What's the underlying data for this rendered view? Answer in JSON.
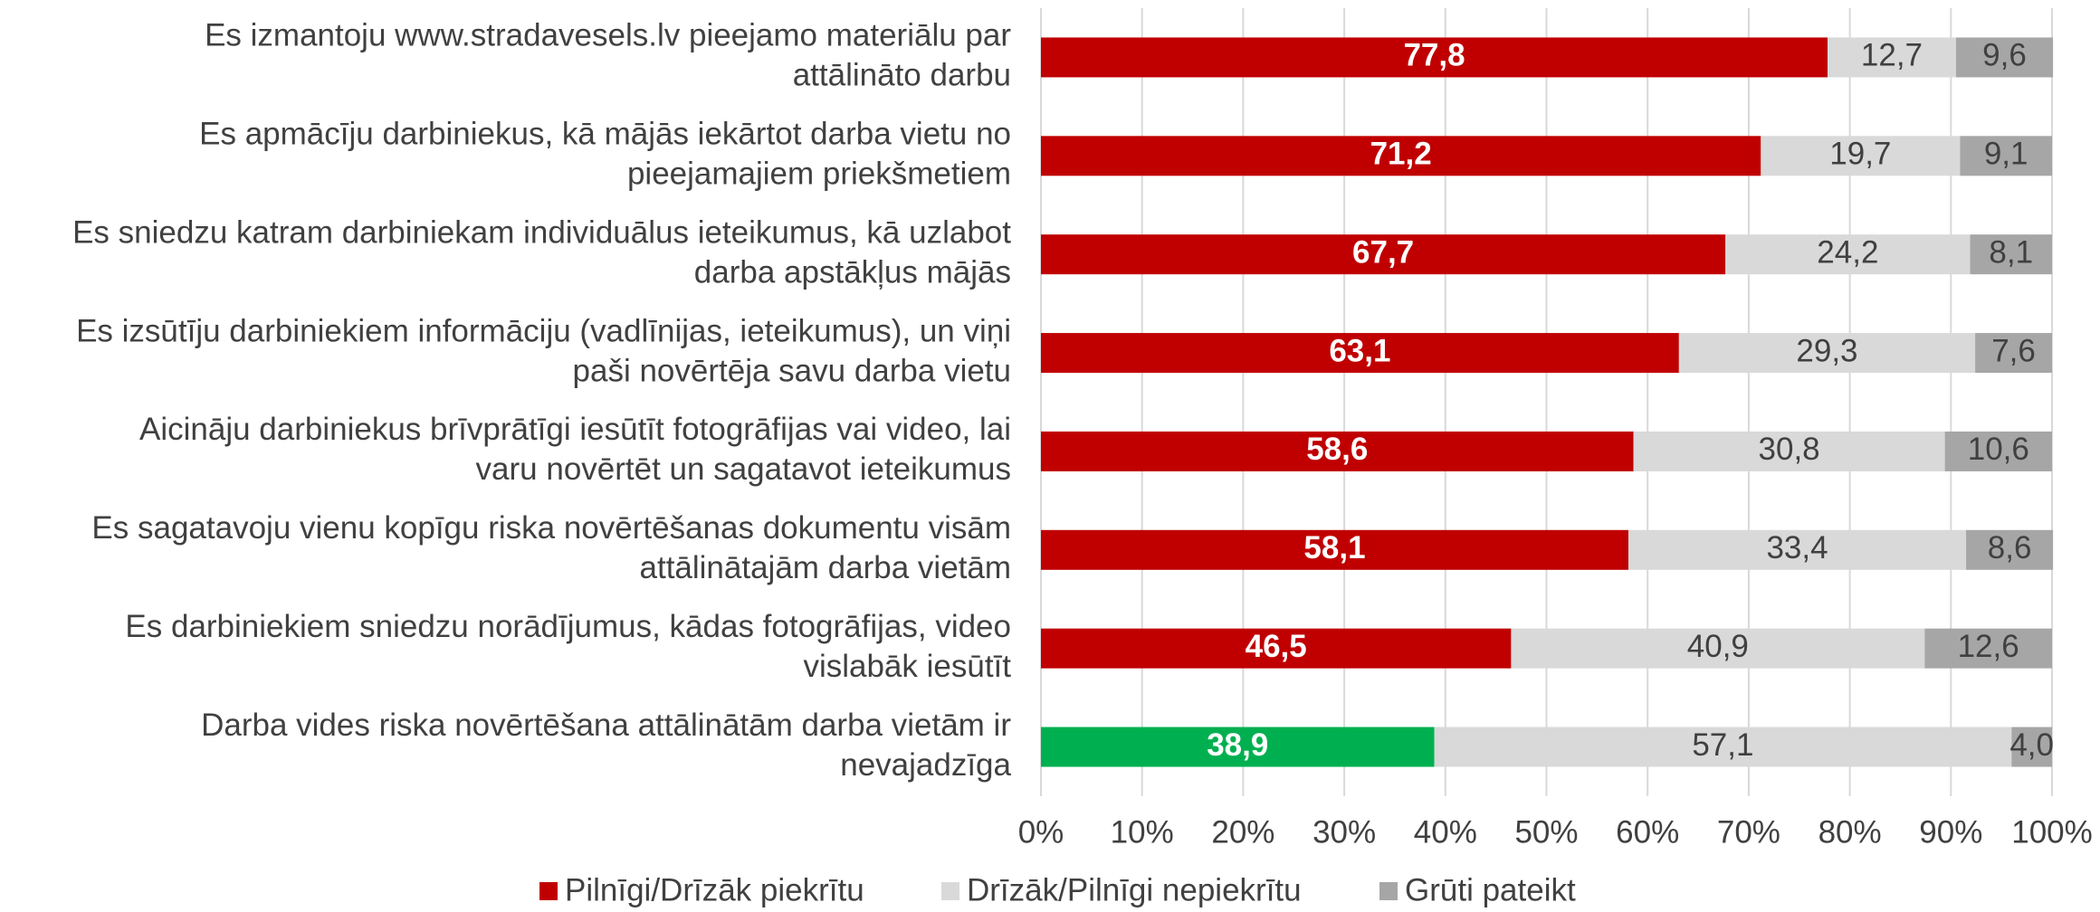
{
  "chart_data": {
    "type": "stacked_bar_horizontal",
    "categories": [
      [
        "Es izmantoju www.stradavesels.lv pieejamo materiālu par",
        "attālināto darbu"
      ],
      [
        "Es apmācīju darbiniekus, kā mājās iekārtot darba vietu no",
        "pieejamajiem priekšmetiem"
      ],
      [
        "Es sniedzu katram darbiniekam individuālus ieteikumus, kā uzlabot",
        "darba apstākļus mājās"
      ],
      [
        "Es izsūtīju darbiniekiem informāciju (vadlīnijas, ieteikumus), un viņi",
        "paši novērtēja savu darba vietu"
      ],
      [
        "Aicināju darbiniekus brīvprātīgi iesūtīt fotogrāfijas vai video, lai",
        "varu novērtēt un sagatavot ieteikumus"
      ],
      [
        "Es sagatavoju vienu kopīgu riska novērtēšanas dokumentu visām",
        "attālinātajām darba vietām"
      ],
      [
        "Es darbiniekiem sniedzu norādījumus, kādas fotogrāfijas, video",
        "vislabāk iesūtīt"
      ],
      [
        "Darba vides riska novērtēšana attālinātām darba vietām ir",
        "nevajadzīga"
      ]
    ],
    "series": [
      {
        "name": "Pilnīgi/Drīzāk piekrītu",
        "color": "#c00000",
        "point_colors": [
          "#c00000",
          "#c00000",
          "#c00000",
          "#c00000",
          "#c00000",
          "#c00000",
          "#c00000",
          "#00b050"
        ],
        "values": [
          77.8,
          71.2,
          67.7,
          63.1,
          58.6,
          58.1,
          46.5,
          38.9
        ],
        "value_labels": [
          "77,8",
          "71,2",
          "67,7",
          "63,1",
          "58,6",
          "58,1",
          "46,5",
          "38,9"
        ]
      },
      {
        "name": "Drīzāk/Pilnīgi nepiekrītu",
        "color": "#d9d9d9",
        "values": [
          12.7,
          19.7,
          24.2,
          29.3,
          30.8,
          33.4,
          40.9,
          57.1
        ],
        "value_labels": [
          "12,7",
          "19,7",
          "24,2",
          "29,3",
          "30,8",
          "33,4",
          "40,9",
          "57,1"
        ]
      },
      {
        "name": "Grūti pateikt",
        "color": "#a6a6a6",
        "values": [
          9.6,
          9.1,
          8.1,
          7.6,
          10.6,
          8.6,
          12.6,
          4.0
        ],
        "value_labels": [
          "9,6",
          "9,1",
          "8,1",
          "7,6",
          "10,6",
          "8,6",
          "12,6",
          "4,0"
        ]
      }
    ],
    "xlim": [
      0,
      100
    ],
    "xticks": [
      {
        "value": 0,
        "label": "0%"
      },
      {
        "value": 10,
        "label": "10%"
      },
      {
        "value": 20,
        "label": "20%"
      },
      {
        "value": 30,
        "label": "30%"
      },
      {
        "value": 40,
        "label": "40%"
      },
      {
        "value": 50,
        "label": "50%"
      },
      {
        "value": 60,
        "label": "60%"
      },
      {
        "value": 70,
        "label": "70%"
      },
      {
        "value": 80,
        "label": "80%"
      },
      {
        "value": 90,
        "label": "90%"
      },
      {
        "value": 100,
        "label": "100%"
      }
    ],
    "grid": true,
    "legend": "bottom"
  }
}
